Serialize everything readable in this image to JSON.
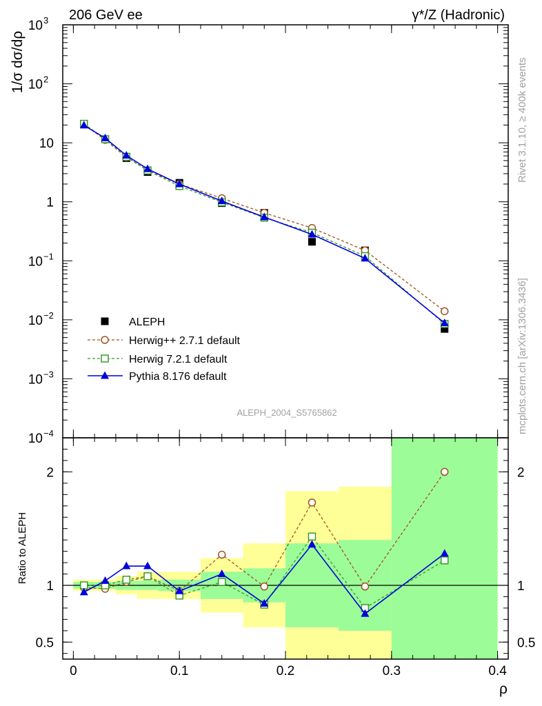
{
  "header": {
    "left": "206 GeV ee",
    "right": "γ*/Z (Hadronic)"
  },
  "side_labels": {
    "rivet": "Rivet 3.1.10, ≥ 400k events",
    "source": "mcplots.cern.ch [arXiv:1306.3436]"
  },
  "analysis_id": "ALEPH_2004_S5765862",
  "colors": {
    "data": "#000000",
    "herwigpp": "#a0521e",
    "herwig7": "#3a9a2a",
    "pythia": "#0000dd",
    "band_stat": "#9cfc98",
    "band_syst": "#ffff98"
  },
  "chart_data": [
    {
      "type": "scatter",
      "panel": "main",
      "ylabel": "1/σ  dσ/dρ",
      "yscale": "log",
      "ylim": [
        0.0001,
        1000
      ],
      "xlim": [
        -0.01,
        0.41
      ],
      "y_ticks": [
        {
          "value": 1000,
          "mant": "10",
          "exp": "3"
        },
        {
          "value": 100,
          "mant": "10",
          "exp": "2"
        },
        {
          "value": 10,
          "mant": "10",
          "exp": ""
        },
        {
          "value": 1,
          "mant": "1",
          "exp": ""
        },
        {
          "value": 0.1,
          "mant": "10",
          "exp": "−1"
        },
        {
          "value": 0.01,
          "mant": "10",
          "exp": "−2"
        },
        {
          "value": 0.001,
          "mant": "10",
          "exp": "−3"
        },
        {
          "value": 0.0001,
          "mant": "10",
          "exp": "−4"
        }
      ],
      "legend_position": "bottom-left",
      "x": [
        0.01,
        0.03,
        0.05,
        0.07,
        0.1,
        0.14,
        0.18,
        0.225,
        0.275,
        0.35
      ],
      "series": [
        {
          "name": "ALEPH",
          "key": "data",
          "style": "filled-square",
          "values": [
            21.0,
            11.5,
            5.5,
            3.2,
            2.1,
            0.95,
            0.65,
            0.21,
            0.15,
            0.007
          ]
        },
        {
          "name": "Herwig++ 2.7.1 default",
          "key": "herwigpp",
          "style": "open-circle-dashed",
          "values": [
            20.5,
            11.2,
            5.7,
            3.4,
            2.0,
            1.15,
            0.65,
            0.36,
            0.15,
            0.014
          ]
        },
        {
          "name": "Herwig 7.2.1 default",
          "key": "herwig7",
          "style": "open-square-dashed",
          "values": [
            21.0,
            11.5,
            5.8,
            3.4,
            1.85,
            0.98,
            0.54,
            0.3,
            0.12,
            0.0085
          ]
        },
        {
          "name": "Pythia 8.176 default",
          "key": "pythia",
          "style": "filled-triangle-solid",
          "values": [
            19.8,
            12.0,
            6.1,
            3.6,
            2.0,
            1.03,
            0.55,
            0.28,
            0.11,
            0.0088
          ]
        }
      ]
    },
    {
      "type": "line",
      "panel": "ratio",
      "xlabel": "ρ",
      "ylabel": "Ratio to ALEPH",
      "ylim": [
        0.35,
        2.3
      ],
      "xlim": [
        -0.01,
        0.41
      ],
      "x_ticks": [
        {
          "value": 0,
          "label": "0"
        },
        {
          "value": 0.1,
          "label": "0.1"
        },
        {
          "value": 0.2,
          "label": "0.2"
        },
        {
          "value": 0.3,
          "label": "0.3"
        },
        {
          "value": 0.4,
          "label": "0.4"
        }
      ],
      "y_ticks": [
        {
          "value": 0.5,
          "label": "0.5"
        },
        {
          "value": 1,
          "label": "1"
        },
        {
          "value": 2,
          "label": "2"
        }
      ],
      "reference_line": 1,
      "bins": [
        {
          "lo": 0.0,
          "hi": 0.02,
          "stat": [
            0.97,
            1.03
          ],
          "syst": [
            0.95,
            1.05
          ]
        },
        {
          "lo": 0.02,
          "hi": 0.04,
          "stat": [
            0.97,
            1.03
          ],
          "syst": [
            0.95,
            1.05
          ]
        },
        {
          "lo": 0.04,
          "hi": 0.06,
          "stat": [
            0.96,
            1.04
          ],
          "syst": [
            0.92,
            1.08
          ]
        },
        {
          "lo": 0.06,
          "hi": 0.08,
          "stat": [
            0.96,
            1.04
          ],
          "syst": [
            0.88,
            1.12
          ]
        },
        {
          "lo": 0.08,
          "hi": 0.12,
          "stat": [
            0.95,
            1.05
          ],
          "syst": [
            0.88,
            1.12
          ]
        },
        {
          "lo": 0.12,
          "hi": 0.16,
          "stat": [
            0.88,
            1.12
          ],
          "syst": [
            0.76,
            1.24
          ]
        },
        {
          "lo": 0.16,
          "hi": 0.2,
          "stat": [
            0.85,
            1.15
          ],
          "syst": [
            0.63,
            1.37
          ]
        },
        {
          "lo": 0.2,
          "hi": 0.25,
          "stat": [
            0.63,
            1.37
          ],
          "syst": [
            0.35,
            1.83
          ]
        },
        {
          "lo": 0.25,
          "hi": 0.3,
          "stat": [
            0.6,
            1.4
          ],
          "syst": [
            0.35,
            1.87
          ]
        },
        {
          "lo": 0.3,
          "hi": 0.4,
          "stat": [
            0.35,
            2.3
          ],
          "syst": [
            0.35,
            2.3
          ]
        }
      ],
      "x": [
        0.01,
        0.03,
        0.05,
        0.07,
        0.1,
        0.14,
        0.18,
        0.225,
        0.275,
        0.35
      ],
      "series": [
        {
          "name": "Herwig++ 2.7.1 default",
          "key": "herwigpp",
          "style": "open-circle-dashed",
          "values": [
            0.98,
            0.97,
            1.03,
            1.08,
            0.95,
            1.27,
            0.99,
            1.73,
            0.99,
            2.0
          ]
        },
        {
          "name": "Herwig 7.2.1 default",
          "key": "herwig7",
          "style": "open-square-dashed",
          "values": [
            1.0,
            1.0,
            1.05,
            1.08,
            0.91,
            1.03,
            0.83,
            1.43,
            0.8,
            1.22
          ]
        },
        {
          "name": "Pythia 8.176 default",
          "key": "pythia",
          "style": "filled-triangle-solid",
          "values": [
            0.94,
            1.04,
            1.17,
            1.17,
            0.95,
            1.1,
            0.84,
            1.36,
            0.75,
            1.28
          ]
        }
      ]
    }
  ]
}
